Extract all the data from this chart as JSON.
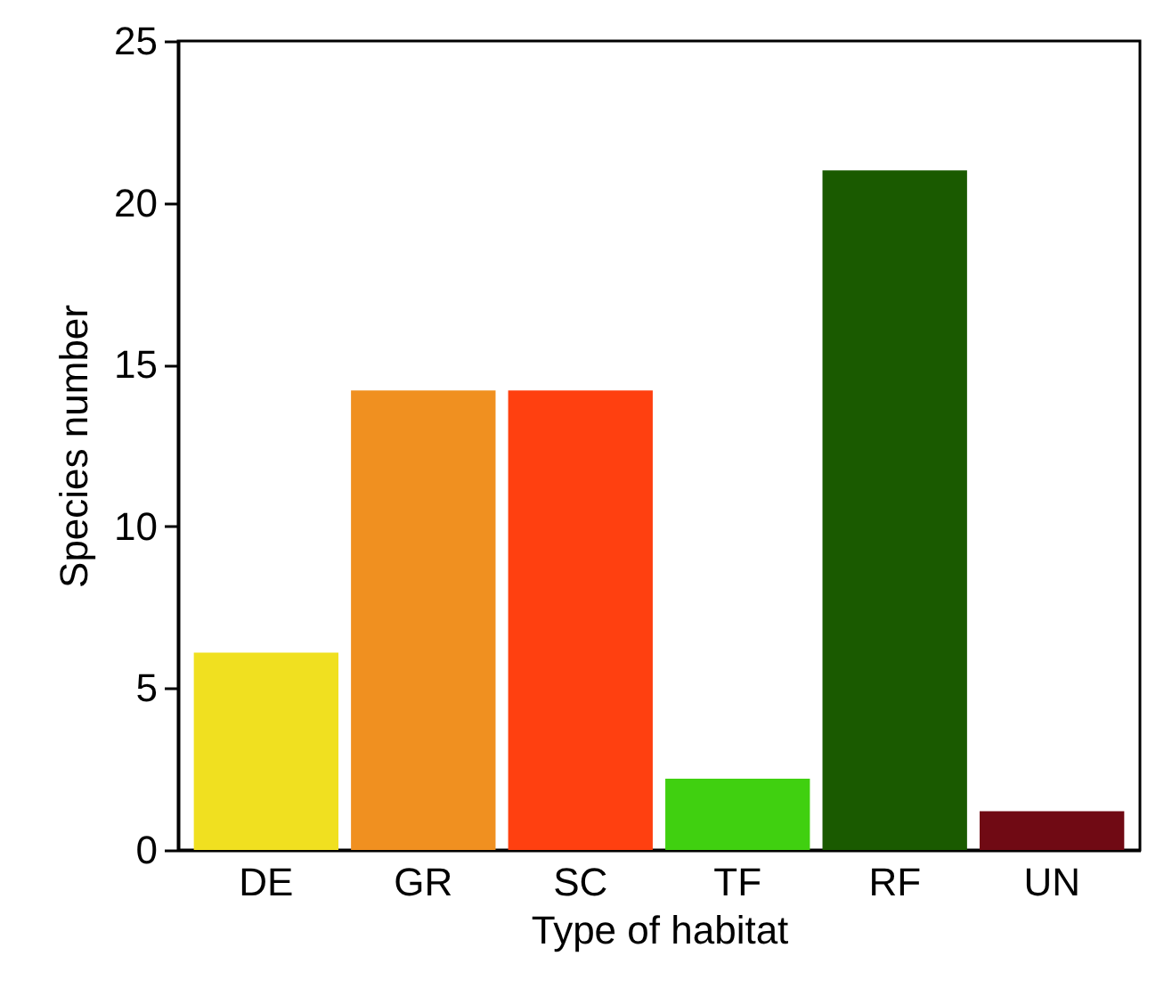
{
  "chart_data": {
    "type": "bar",
    "xlabel": "Type of habitat",
    "ylabel": "Species number",
    "categories": [
      "DE",
      "GR",
      "SC",
      "TF",
      "RF",
      "UN"
    ],
    "values": [
      6.1,
      14.2,
      14.2,
      2.2,
      21,
      1.2
    ],
    "colors": [
      "#f0e020",
      "#f09020",
      "#ff4010",
      "#40d010",
      "#1a5a00",
      "#700a14"
    ],
    "ylim": [
      0,
      25
    ],
    "yticks": [
      0,
      5,
      10,
      15,
      20,
      25
    ],
    "grid": false,
    "legend": false
  }
}
